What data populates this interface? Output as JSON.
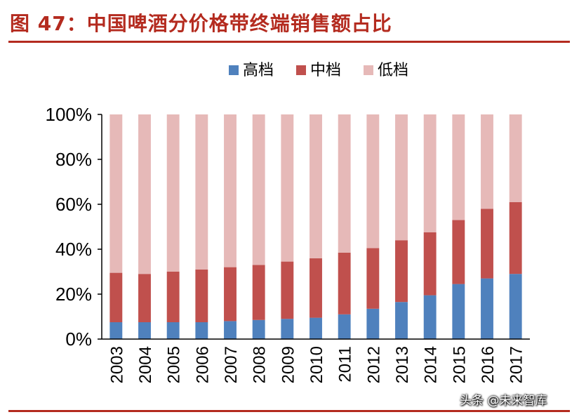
{
  "figure": {
    "title": "图 47：中国啤酒分价格带终端销售额占比",
    "watermark": "头条 @未来智库",
    "colors": {
      "title": "#b42b1f",
      "rule": "#b42b1f"
    }
  },
  "chart_data": {
    "type": "bar",
    "stacked": true,
    "orientation": "vertical",
    "title": "",
    "xlabel": "",
    "ylabel": "",
    "ylim": [
      0,
      100
    ],
    "yticks": [
      "0%",
      "20%",
      "40%",
      "60%",
      "80%",
      "100%"
    ],
    "legend_position": "top-center",
    "categories": [
      "2003",
      "2004",
      "2005",
      "2006",
      "2007",
      "2008",
      "2009",
      "2010",
      "2011",
      "2012",
      "2013",
      "2014",
      "2015",
      "2016",
      "2017"
    ],
    "series": [
      {
        "name": "高档",
        "color": "#4f81bd",
        "values": [
          7.5,
          7.5,
          7.5,
          7.5,
          8,
          8.5,
          9,
          9.5,
          11,
          13.5,
          16.5,
          19.5,
          24.5,
          27,
          29
        ]
      },
      {
        "name": "中档",
        "color": "#c0504d",
        "values": [
          22,
          21.5,
          22.5,
          23.5,
          24,
          24.5,
          25.5,
          26.5,
          27.5,
          27,
          27.5,
          28,
          28.5,
          31,
          32
        ]
      },
      {
        "name": "低档",
        "color": "#e6b9b8",
        "values": [
          70.5,
          71,
          70,
          69,
          68,
          67,
          65.5,
          64,
          61.5,
          59.5,
          56,
          52.5,
          47,
          42,
          39
        ]
      }
    ]
  }
}
